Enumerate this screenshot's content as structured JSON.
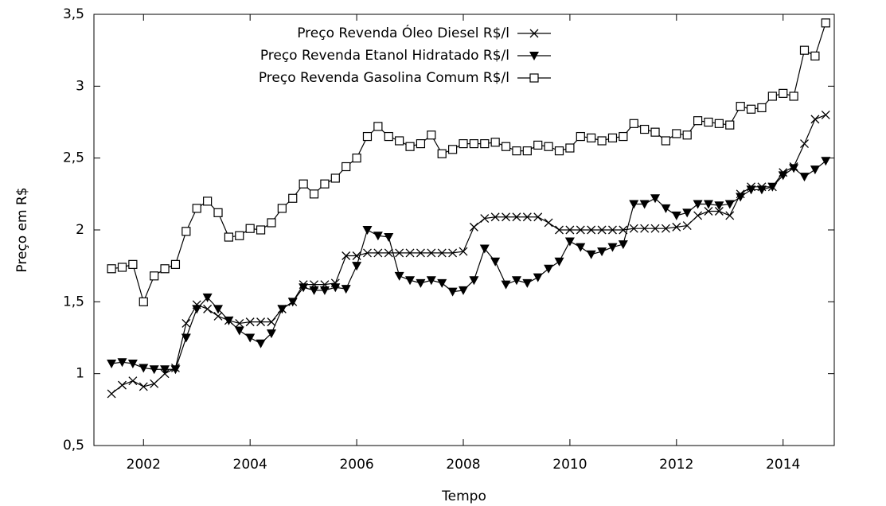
{
  "chart_data": {
    "type": "line",
    "x_label": "Tempo",
    "y_label": "Preço em R$",
    "xlim": [
      2001.07,
      2014.96
    ],
    "xticks": [
      2002,
      2004,
      2006,
      2008,
      2010,
      2012,
      2014
    ],
    "ylim": [
      0.5,
      3.5
    ],
    "yticks": [
      {
        "value": 0.5,
        "label": "0,5"
      },
      1,
      {
        "value": 1.5,
        "label": "1,5"
      },
      2,
      {
        "value": 2.5,
        "label": "2,5"
      },
      3,
      {
        "value": 3.5,
        "label": "3,5"
      }
    ],
    "grid": false,
    "legend": "top-right",
    "x": [
      2001.4,
      2001.6,
      2001.8,
      2002.0,
      2002.2,
      2002.4,
      2002.6,
      2002.8,
      2003.0,
      2003.2,
      2003.4,
      2003.6,
      2003.8,
      2004.0,
      2004.2,
      2004.4,
      2004.6,
      2004.8,
      2005.0,
      2005.2,
      2005.4,
      2005.6,
      2005.8,
      2006.0,
      2006.2,
      2006.4,
      2006.6,
      2006.8,
      2007.0,
      2007.2,
      2007.4,
      2007.6,
      2007.8,
      2008.0,
      2008.2,
      2008.4,
      2008.6,
      2008.8,
      2009.0,
      2009.2,
      2009.4,
      2009.6,
      2009.8,
      2010.0,
      2010.2,
      2010.4,
      2010.6,
      2010.8,
      2011.0,
      2011.2,
      2011.4,
      2011.6,
      2011.8,
      2012.0,
      2012.2,
      2012.4,
      2012.6,
      2012.8,
      2013.0,
      2013.2,
      2013.4,
      2013.6,
      2013.8,
      2014.0,
      2014.2,
      2014.4,
      2014.6,
      2014.8
    ],
    "series": [
      {
        "name": "Preço Revenda Óleo Diesel R$/l",
        "color": "#000000",
        "marker": "cross",
        "values": [
          0.86,
          0.92,
          0.95,
          0.91,
          0.93,
          1.0,
          1.04,
          1.35,
          1.48,
          1.45,
          1.4,
          1.37,
          1.35,
          1.36,
          1.36,
          1.36,
          1.45,
          1.5,
          1.62,
          1.62,
          1.62,
          1.63,
          1.82,
          1.82,
          1.84,
          1.84,
          1.84,
          1.84,
          1.84,
          1.84,
          1.84,
          1.84,
          1.84,
          1.85,
          2.02,
          2.08,
          2.09,
          2.09,
          2.09,
          2.09,
          2.09,
          2.05,
          2.0,
          2.0,
          2.0,
          2.0,
          2.0,
          2.0,
          2.0,
          2.01,
          2.01,
          2.01,
          2.01,
          2.02,
          2.03,
          2.1,
          2.13,
          2.13,
          2.1,
          2.25,
          2.3,
          2.3,
          2.3,
          2.4,
          2.44,
          2.6,
          2.77,
          2.8
        ]
      },
      {
        "name": "Preço Revenda Etanol Hidratado R$/l",
        "color": "#000000",
        "marker": "triangle-down",
        "values": [
          1.07,
          1.08,
          1.07,
          1.04,
          1.03,
          1.03,
          1.03,
          1.25,
          1.45,
          1.53,
          1.45,
          1.37,
          1.3,
          1.25,
          1.21,
          1.28,
          1.45,
          1.5,
          1.6,
          1.58,
          1.58,
          1.6,
          1.59,
          1.75,
          2.0,
          1.96,
          1.95,
          1.68,
          1.65,
          1.63,
          1.65,
          1.63,
          1.57,
          1.58,
          1.65,
          1.87,
          1.78,
          1.62,
          1.65,
          1.63,
          1.67,
          1.73,
          1.78,
          1.92,
          1.88,
          1.83,
          1.85,
          1.88,
          1.9,
          2.18,
          2.18,
          2.22,
          2.15,
          2.1,
          2.12,
          2.18,
          2.18,
          2.17,
          2.18,
          2.23,
          2.28,
          2.28,
          2.3,
          2.38,
          2.43,
          2.37,
          2.42,
          2.48
        ]
      },
      {
        "name": "Preço Revenda Gasolina Comum R$/l",
        "color": "#000000",
        "marker": "square-open",
        "values": [
          1.73,
          1.74,
          1.76,
          1.5,
          1.68,
          1.73,
          1.76,
          1.99,
          2.15,
          2.2,
          2.12,
          1.95,
          1.96,
          2.01,
          2.0,
          2.05,
          2.15,
          2.22,
          2.32,
          2.25,
          2.32,
          2.36,
          2.44,
          2.5,
          2.65,
          2.72,
          2.65,
          2.62,
          2.58,
          2.6,
          2.66,
          2.53,
          2.56,
          2.6,
          2.6,
          2.6,
          2.61,
          2.58,
          2.55,
          2.55,
          2.59,
          2.58,
          2.55,
          2.57,
          2.65,
          2.64,
          2.62,
          2.64,
          2.65,
          2.74,
          2.7,
          2.68,
          2.62,
          2.67,
          2.66,
          2.76,
          2.75,
          2.74,
          2.73,
          2.86,
          2.84,
          2.85,
          2.93,
          2.95,
          2.93,
          3.25,
          3.21,
          3.44
        ]
      }
    ]
  }
}
